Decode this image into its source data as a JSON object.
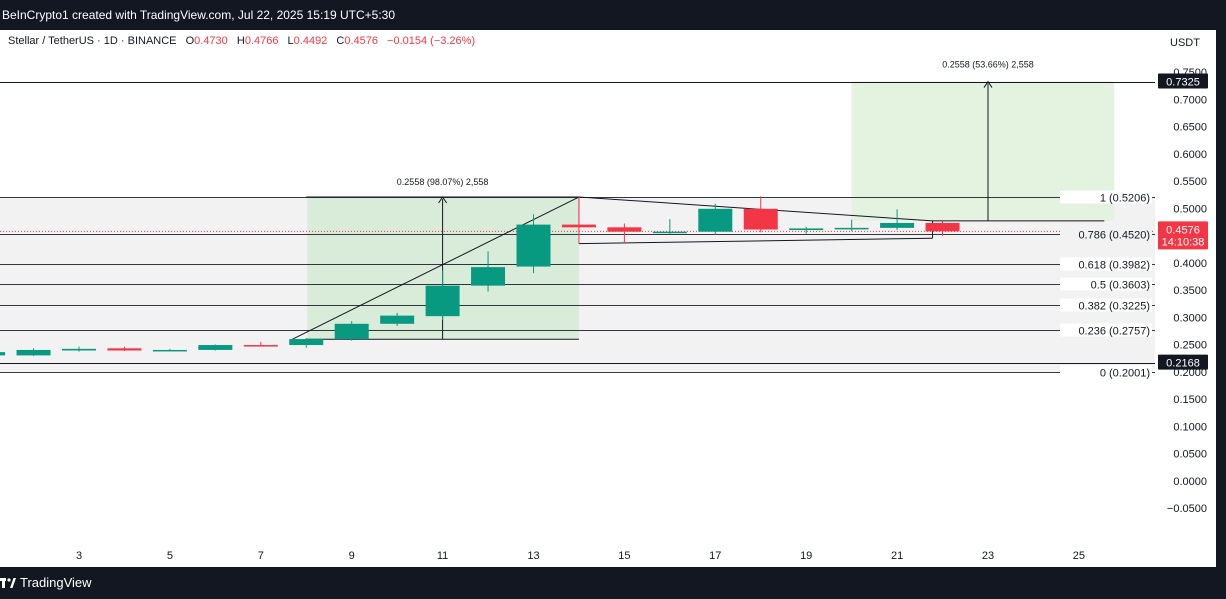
{
  "header": {
    "attribution": "BeInCrypto1 created with TradingView.com, Jul 22, 2025 15:19 UTC+5:30"
  },
  "legend": {
    "symbol": "Stellar / TetherUS · 1D · BINANCE",
    "open_key": "O",
    "open": "0.4730",
    "high_key": "H",
    "high": "0.4766",
    "low_key": "L",
    "low": "0.4492",
    "close_key": "C",
    "close": "0.4576",
    "change": "−0.0154 (−3.26%)"
  },
  "price_axis": {
    "currency": "USDT",
    "tick_labels": [
      "0.7500",
      "0.7000",
      "0.6500",
      "0.6000",
      "0.5500",
      "0.5000",
      "0.4500",
      "0.4000",
      "0.3500",
      "0.3000",
      "0.2500",
      "0.2000",
      "0.1500",
      "0.1000",
      "0.0500",
      "0.0000",
      "−0.0500"
    ],
    "tick_values": [
      0.75,
      0.7,
      0.65,
      0.6,
      0.55,
      0.5,
      0.45,
      0.4,
      0.35,
      0.3,
      0.25,
      0.2,
      0.15,
      0.1,
      0.05,
      0.0,
      -0.05
    ],
    "price_tags": [
      {
        "text": "0.7325",
        "value": 0.7325,
        "style": "dark"
      },
      {
        "text": "0.2168",
        "value": 0.2168,
        "style": "dark"
      }
    ],
    "last_price_tag": {
      "price": "0.4576",
      "countdown": "14:10:38",
      "value": 0.4576
    }
  },
  "time_axis": {
    "tick_labels": [
      "3",
      "5",
      "7",
      "9",
      "11",
      "13",
      "15",
      "17",
      "19",
      "21",
      "23",
      "25"
    ],
    "tick_days": [
      3,
      5,
      7,
      9,
      11,
      13,
      15,
      17,
      19,
      21,
      23,
      25
    ]
  },
  "fib_levels": [
    {
      "label": "1 (0.5206)",
      "value": 0.5206
    },
    {
      "label": "0.786 (0.4520)",
      "value": 0.452
    },
    {
      "label": "0.618 (0.3982)",
      "value": 0.3982
    },
    {
      "label": "0.5 (0.3603)",
      "value": 0.3603
    },
    {
      "label": "0.382 (0.3225)",
      "value": 0.3225
    },
    {
      "label": "0.236 (0.2757)",
      "value": 0.2757
    },
    {
      "label": "0 (0.2001)",
      "value": 0.2001
    }
  ],
  "annotations": {
    "measure_1": "0.2558 (98.07%) 2,558",
    "measure_2": "0.2558 (53.66%) 2,558"
  },
  "footer": {
    "brand": "TradingView"
  },
  "colors": {
    "up": "#089981",
    "down": "#f23645",
    "bg": "#ffffff",
    "dark": "#131722",
    "zone": "#d6ebd6",
    "fib_band": "#f2f2f2"
  },
  "chart_data": {
    "type": "candlestick",
    "symbol": "Stellar / TetherUS",
    "interval": "1D",
    "exchange": "BINANCE",
    "x_unit": "day of month (July 2025)",
    "candles": [
      {
        "day": 1,
        "open": 0.23,
        "high": 0.238,
        "low": 0.229,
        "close": 0.236
      },
      {
        "day": 2,
        "open": 0.23,
        "high": 0.243,
        "low": 0.229,
        "close": 0.24
      },
      {
        "day": 3,
        "open": 0.239,
        "high": 0.246,
        "low": 0.237,
        "close": 0.242
      },
      {
        "day": 4,
        "open": 0.243,
        "high": 0.246,
        "low": 0.238,
        "close": 0.239
      },
      {
        "day": 5,
        "open": 0.239,
        "high": 0.242,
        "low": 0.238,
        "close": 0.24
      },
      {
        "day": 6,
        "open": 0.24,
        "high": 0.25,
        "low": 0.239,
        "close": 0.249
      },
      {
        "day": 7,
        "open": 0.249,
        "high": 0.255,
        "low": 0.247,
        "close": 0.248
      },
      {
        "day": 8,
        "open": 0.249,
        "high": 0.262,
        "low": 0.244,
        "close": 0.26
      },
      {
        "day": 9,
        "open": 0.26,
        "high": 0.293,
        "low": 0.257,
        "close": 0.288
      },
      {
        "day": 10,
        "open": 0.288,
        "high": 0.308,
        "low": 0.284,
        "close": 0.303
      },
      {
        "day": 11,
        "open": 0.302,
        "high": 0.386,
        "low": 0.295,
        "close": 0.358
      },
      {
        "day": 12,
        "open": 0.358,
        "high": 0.421,
        "low": 0.347,
        "close": 0.392
      },
      {
        "day": 13,
        "open": 0.393,
        "high": 0.489,
        "low": 0.381,
        "close": 0.47
      },
      {
        "day": 14,
        "open": 0.47,
        "high": 0.5206,
        "low": 0.459,
        "close": 0.465
      },
      {
        "day": 15,
        "open": 0.465,
        "high": 0.472,
        "low": 0.435,
        "close": 0.457
      },
      {
        "day": 16,
        "open": 0.456,
        "high": 0.48,
        "low": 0.453,
        "close": 0.457
      },
      {
        "day": 17,
        "open": 0.457,
        "high": 0.508,
        "low": 0.451,
        "close": 0.499
      },
      {
        "day": 18,
        "open": 0.499,
        "high": 0.522,
        "low": 0.456,
        "close": 0.461
      },
      {
        "day": 19,
        "open": 0.46,
        "high": 0.466,
        "low": 0.453,
        "close": 0.463
      },
      {
        "day": 20,
        "open": 0.462,
        "high": 0.479,
        "low": 0.458,
        "close": 0.464
      },
      {
        "day": 21,
        "open": 0.464,
        "high": 0.498,
        "low": 0.46,
        "close": 0.473
      },
      {
        "day": 22,
        "open": 0.473,
        "high": 0.4766,
        "low": 0.4492,
        "close": 0.4576
      }
    ],
    "ylim": [
      -0.065,
      0.76
    ],
    "xlim": [
      0.3,
      26.0
    ],
    "grid": false
  }
}
